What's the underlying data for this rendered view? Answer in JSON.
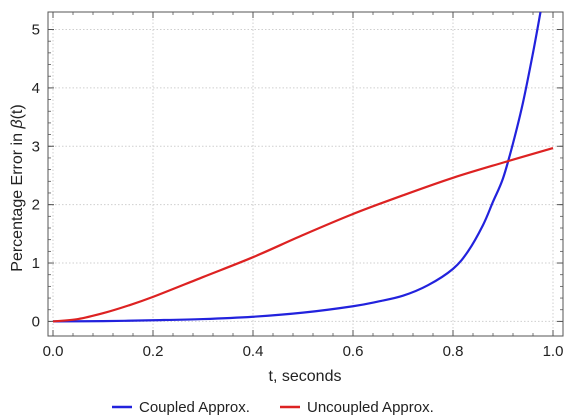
{
  "chart_data": {
    "type": "line",
    "xlabel": "t, seconds",
    "ylabel_prefix": "Percentage Error in ",
    "ylabel_symbol": "β",
    "ylabel_suffix": "(t)",
    "xlim": [
      -0.01,
      1.02
    ],
    "ylim": [
      -0.25,
      5.3
    ],
    "x_ticks": [
      "0.0",
      "0.2",
      "0.4",
      "0.6",
      "0.8",
      "1.0"
    ],
    "x_tick_values": [
      0.0,
      0.2,
      0.4,
      0.6,
      0.8,
      1.0
    ],
    "y_ticks": [
      "0",
      "1",
      "2",
      "3",
      "4",
      "5"
    ],
    "y_tick_values": [
      0,
      1,
      2,
      3,
      4,
      5
    ],
    "grid": true,
    "legend_position": "bottom",
    "series": [
      {
        "name": "Coupled Approx.",
        "color": "#2222dd",
        "x": [
          0.0,
          0.1,
          0.2,
          0.3,
          0.4,
          0.5,
          0.6,
          0.65,
          0.7,
          0.75,
          0.8,
          0.83,
          0.86,
          0.88,
          0.9,
          0.92,
          0.94,
          0.96,
          0.975
        ],
        "y": [
          0.0,
          0.005,
          0.02,
          0.04,
          0.08,
          0.15,
          0.26,
          0.34,
          0.44,
          0.62,
          0.9,
          1.2,
          1.65,
          2.05,
          2.45,
          3.05,
          3.75,
          4.6,
          5.3
        ]
      },
      {
        "name": "Uncoupled Approx.",
        "color": "#dd2222",
        "x": [
          0.0,
          0.05,
          0.1,
          0.15,
          0.2,
          0.3,
          0.4,
          0.5,
          0.6,
          0.7,
          0.8,
          0.9,
          1.0
        ],
        "y": [
          0.0,
          0.04,
          0.14,
          0.27,
          0.42,
          0.76,
          1.1,
          1.48,
          1.84,
          2.16,
          2.46,
          2.72,
          2.97
        ]
      }
    ]
  }
}
